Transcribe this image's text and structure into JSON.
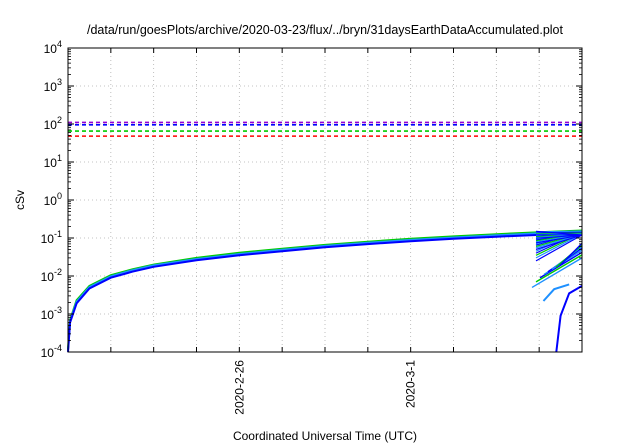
{
  "chart_data": {
    "type": "line",
    "title": "/data/run/goesPlots/archive/2020-03-23/flux/../bryn/31daysEarthDataAccumulated.plot",
    "xlabel": "Coordinated Universal Time (UTC)",
    "ylabel": "cSv",
    "yscale": "log",
    "ylim": [
      0.0001,
      10000
    ],
    "yticks": [
      {
        "base": "10",
        "exp": "-4",
        "value": 0.0001
      },
      {
        "base": "10",
        "exp": "-3",
        "value": 0.001
      },
      {
        "base": "10",
        "exp": "-2",
        "value": 0.01
      },
      {
        "base": "10",
        "exp": "-1",
        "value": 0.1
      },
      {
        "base": "10",
        "exp": "0",
        "value": 1
      },
      {
        "base": "10",
        "exp": "1",
        "value": 10
      },
      {
        "base": "10",
        "exp": "2",
        "value": 100
      },
      {
        "base": "10",
        "exp": "3",
        "value": 1000
      },
      {
        "base": "10",
        "exp": "4",
        "value": 10000
      }
    ],
    "xlim": [
      "2020-02-22",
      "2020-03-05"
    ],
    "xticks": [
      {
        "label": "2020-2-26",
        "value": "2020-02-26"
      },
      {
        "label": "2020-3-1",
        "value": "2020-03-01"
      }
    ],
    "xgrid_dates": [
      "2020-02-23",
      "2020-02-24",
      "2020-02-25",
      "2020-02-26",
      "2020-02-27",
      "2020-02-28",
      "2020-02-29",
      "2020-03-01",
      "2020-03-02",
      "2020-03-03",
      "2020-03-04"
    ],
    "grid": true,
    "thresholds": [
      {
        "value": 110,
        "color": "#9400d3"
      },
      {
        "value": 95,
        "color": "#0000ff"
      },
      {
        "value": 65,
        "color": "#00cc00"
      },
      {
        "value": 48,
        "color": "#ff0000"
      }
    ],
    "series": [
      {
        "color": "#00cc00",
        "x": [
          "2020-02-22",
          "2020-02-22.05",
          "2020-02-22.2",
          "2020-02-22.5",
          "2020-02-23",
          "2020-02-23.5",
          "2020-02-24",
          "2020-02-25",
          "2020-02-26",
          "2020-02-27",
          "2020-02-28",
          "2020-02-29",
          "2020-03-01",
          "2020-03-02",
          "2020-03-03",
          "2020-03-04",
          "2020-03-05"
        ],
        "values": [
          0.00012,
          0.0007,
          0.0023,
          0.0055,
          0.0105,
          0.015,
          0.02,
          0.03,
          0.041,
          0.052,
          0.066,
          0.08,
          0.095,
          0.11,
          0.126,
          0.142,
          0.158
        ]
      },
      {
        "color": "#1e90ff",
        "x": [
          "2020-02-22",
          "2020-02-22.05",
          "2020-02-22.2",
          "2020-02-22.5",
          "2020-02-23",
          "2020-02-23.5",
          "2020-02-24",
          "2020-02-25",
          "2020-02-26",
          "2020-02-27",
          "2020-02-28",
          "2020-02-29",
          "2020-03-01",
          "2020-03-02",
          "2020-03-03",
          "2020-03-04",
          "2020-03-05"
        ],
        "values": [
          0.00011,
          0.00065,
          0.0021,
          0.0051,
          0.0098,
          0.0142,
          0.019,
          0.028,
          0.038,
          0.049,
          0.062,
          0.075,
          0.089,
          0.103,
          0.118,
          0.133,
          0.148
        ]
      },
      {
        "color": "#0000ff",
        "x": [
          "2020-02-22",
          "2020-02-22.05",
          "2020-02-22.2",
          "2020-02-22.5",
          "2020-02-23",
          "2020-02-23.5",
          "2020-02-24",
          "2020-02-25",
          "2020-02-26",
          "2020-02-27",
          "2020-02-28",
          "2020-02-29",
          "2020-03-01",
          "2020-03-02",
          "2020-03-03",
          "2020-03-04",
          "2020-03-05"
        ],
        "values": [
          0.0001,
          0.0006,
          0.0019,
          0.0047,
          0.009,
          0.013,
          0.0175,
          0.026,
          0.035,
          0.045,
          0.057,
          0.069,
          0.082,
          0.095,
          0.108,
          0.121,
          0.134
        ]
      }
    ]
  }
}
